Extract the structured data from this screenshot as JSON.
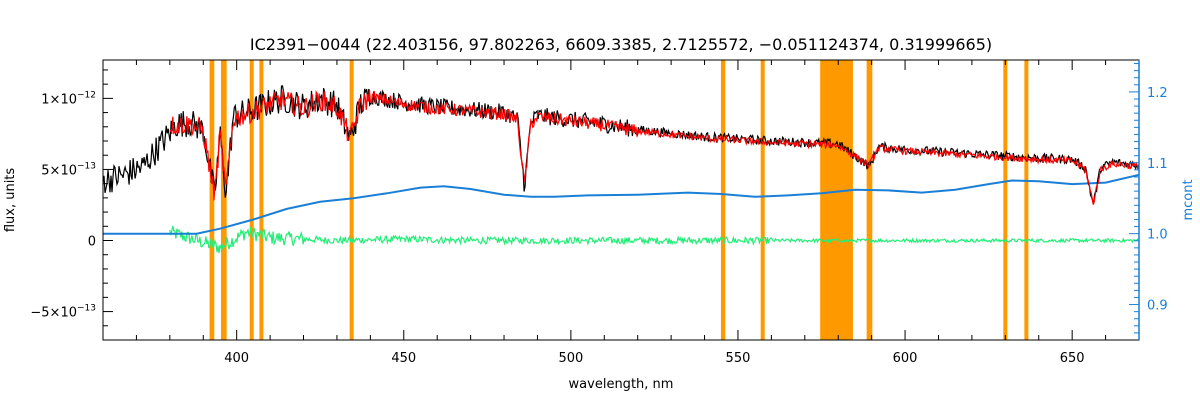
{
  "chart_data": {
    "type": "line",
    "title": "IC2391−0044    (22.403156, 97.802263, 6609.3385, 2.7125572, −0.051124374, 0.31999665)",
    "xlabel": "wavelength, nm",
    "ylabel": "flux, units",
    "y2label": "mcont",
    "xlim": [
      360,
      670
    ],
    "ylim": [
      -7e-13,
      1.27e-12
    ],
    "y2lim": [
      0.85,
      1.245
    ],
    "grid": false,
    "legend": "none",
    "x_ticks": [
      {
        "value": 400,
        "label": "400"
      },
      {
        "value": 450,
        "label": "450"
      },
      {
        "value": 500,
        "label": "500"
      },
      {
        "value": 550,
        "label": "550"
      },
      {
        "value": 600,
        "label": "600"
      },
      {
        "value": 650,
        "label": "650"
      }
    ],
    "y_ticks": [
      {
        "value": 1e-12,
        "base": "1×10",
        "exp": "−12"
      },
      {
        "value": 5e-13,
        "base": "5×10",
        "exp": "−13"
      },
      {
        "value": 0,
        "base": "0",
        "exp": ""
      },
      {
        "value": -5e-13,
        "base": "−5×10",
        "exp": "−13"
      }
    ],
    "y2_ticks": [
      {
        "value": 0.9,
        "label": "0.9"
      },
      {
        "value": 1.0,
        "label": "1.0"
      },
      {
        "value": 1.1,
        "label": "1.1"
      },
      {
        "value": 1.2,
        "label": "1.2"
      }
    ],
    "masked_bands": [
      [
        391.9,
        393.3
      ],
      [
        395.3,
        397.0
      ],
      [
        403.9,
        405.1
      ],
      [
        406.8,
        408.0
      ],
      [
        433.8,
        435.0
      ],
      [
        544.9,
        546.2
      ],
      [
        556.8,
        558.0
      ],
      [
        574.6,
        584.4
      ],
      [
        588.5,
        590.2
      ],
      [
        629.4,
        630.6
      ],
      [
        635.7,
        636.9
      ]
    ],
    "series": [
      {
        "color": "#000000",
        "axis": "left",
        "noise": 4e-14,
        "points": [
          [
            360,
            4.2e-13
          ],
          [
            366,
            4.6e-13
          ],
          [
            372,
            5.2e-13
          ],
          [
            378,
            7e-13
          ],
          [
            382,
            8.2e-13
          ],
          [
            386,
            8.3e-13
          ],
          [
            390,
            7.8e-13
          ],
          [
            393.4,
            3.1e-13
          ],
          [
            395,
            7.5e-13
          ],
          [
            396.8,
            3.3e-13
          ],
          [
            399,
            8.7e-13
          ],
          [
            404,
            9.1e-13
          ],
          [
            410,
            9.7e-13
          ],
          [
            414,
            1e-12
          ],
          [
            420,
            9.4e-13
          ],
          [
            425,
            1e-12
          ],
          [
            430,
            9.5e-13
          ],
          [
            434.0,
            7.1e-13
          ],
          [
            437,
            9.6e-13
          ],
          [
            440,
            1.02e-12
          ],
          [
            450,
            9.7e-13
          ],
          [
            460,
            9.4e-13
          ],
          [
            470,
            9.2e-13
          ],
          [
            480,
            9e-13
          ],
          [
            484,
            8.6e-13
          ],
          [
            486.1,
            3.8e-13
          ],
          [
            488,
            8.3e-13
          ],
          [
            490,
            8.8e-13
          ],
          [
            500,
            8.5e-13
          ],
          [
            510,
            8.2e-13
          ],
          [
            520,
            7.8e-13
          ],
          [
            540,
            7.3e-13
          ],
          [
            560,
            7e-13
          ],
          [
            580,
            6.8e-13
          ],
          [
            589.3,
            5.2e-13
          ],
          [
            592,
            6.6e-13
          ],
          [
            600,
            6.4e-13
          ],
          [
            620,
            6.1e-13
          ],
          [
            640,
            5.8e-13
          ],
          [
            650,
            5.7e-13
          ],
          [
            654,
            5.1e-13
          ],
          [
            656.3,
            2.5e-13
          ],
          [
            658.5,
            5.1e-13
          ],
          [
            662,
            5.5e-13
          ],
          [
            670,
            5.3e-13
          ]
        ]
      },
      {
        "color": "#ff0000",
        "axis": "left",
        "noise": 3e-14,
        "points": [
          [
            380,
            8.1e-13
          ],
          [
            386,
            8.2e-13
          ],
          [
            390,
            7.7e-13
          ],
          [
            393.4,
            3.2e-13
          ],
          [
            395,
            7.4e-13
          ],
          [
            396.8,
            3.4e-13
          ],
          [
            399,
            8.6e-13
          ],
          [
            404,
            9e-13
          ],
          [
            410,
            9.6e-13
          ],
          [
            414,
            9.9e-13
          ],
          [
            420,
            9.3e-13
          ],
          [
            425,
            9.9e-13
          ],
          [
            430,
            9.4e-13
          ],
          [
            434.0,
            7.2e-13
          ],
          [
            437,
            9.5e-13
          ],
          [
            440,
            1.01e-12
          ],
          [
            450,
            9.6e-13
          ],
          [
            460,
            9.3e-13
          ],
          [
            470,
            9.1e-13
          ],
          [
            480,
            8.9e-13
          ],
          [
            484,
            8.5e-13
          ],
          [
            486.1,
            3.9e-13
          ],
          [
            488,
            8.2e-13
          ],
          [
            490,
            8.7e-13
          ],
          [
            500,
            8.4e-13
          ],
          [
            510,
            8.1e-13
          ],
          [
            520,
            7.7e-13
          ],
          [
            540,
            7.2e-13
          ],
          [
            560,
            6.9e-13
          ],
          [
            580,
            6.7e-13
          ],
          [
            589.3,
            5.3e-13
          ],
          [
            592,
            6.5e-13
          ],
          [
            600,
            6.3e-13
          ],
          [
            620,
            6e-13
          ],
          [
            640,
            5.7e-13
          ],
          [
            650,
            5.6e-13
          ],
          [
            654,
            5e-13
          ],
          [
            656.3,
            2.6e-13
          ],
          [
            658.5,
            5e-13
          ],
          [
            662,
            5.4e-13
          ],
          [
            670,
            5.2e-13
          ]
        ]
      },
      {
        "color": "#1a7fd6",
        "axis": "right",
        "noise": 0,
        "points": [
          [
            360,
            1.0
          ],
          [
            380,
            1.0
          ],
          [
            388,
            1.0
          ],
          [
            395,
            1.007
          ],
          [
            405,
            1.02
          ],
          [
            415,
            1.035
          ],
          [
            425,
            1.045
          ],
          [
            435,
            1.05
          ],
          [
            445,
            1.057
          ],
          [
            455,
            1.065
          ],
          [
            462,
            1.067
          ],
          [
            470,
            1.063
          ],
          [
            480,
            1.055
          ],
          [
            488,
            1.052
          ],
          [
            495,
            1.052
          ],
          [
            505,
            1.054
          ],
          [
            520,
            1.055
          ],
          [
            535,
            1.058
          ],
          [
            545,
            1.056
          ],
          [
            555,
            1.052
          ],
          [
            565,
            1.054
          ],
          [
            575,
            1.057
          ],
          [
            585,
            1.062
          ],
          [
            595,
            1.061
          ],
          [
            605,
            1.058
          ],
          [
            615,
            1.062
          ],
          [
            625,
            1.07
          ],
          [
            632,
            1.075
          ],
          [
            640,
            1.074
          ],
          [
            650,
            1.07
          ],
          [
            660,
            1.072
          ],
          [
            670,
            1.083
          ]
        ]
      },
      {
        "color": "#22ee77",
        "axis": "left",
        "noise": 2e-14,
        "points": [
          [
            380,
            6e-14
          ],
          [
            395,
            -5e-14
          ],
          [
            403,
            6e-14
          ],
          [
            410,
            2e-14
          ],
          [
            430,
            0
          ],
          [
            450,
            1e-14
          ],
          [
            470,
            0
          ],
          [
            490,
            0
          ],
          [
            510,
            0
          ],
          [
            530,
            0
          ],
          [
            550,
            0
          ],
          [
            570,
            0
          ],
          [
            590,
            0
          ],
          [
            610,
            0
          ],
          [
            630,
            0
          ],
          [
            650,
            0
          ],
          [
            670,
            0
          ]
        ]
      }
    ]
  }
}
